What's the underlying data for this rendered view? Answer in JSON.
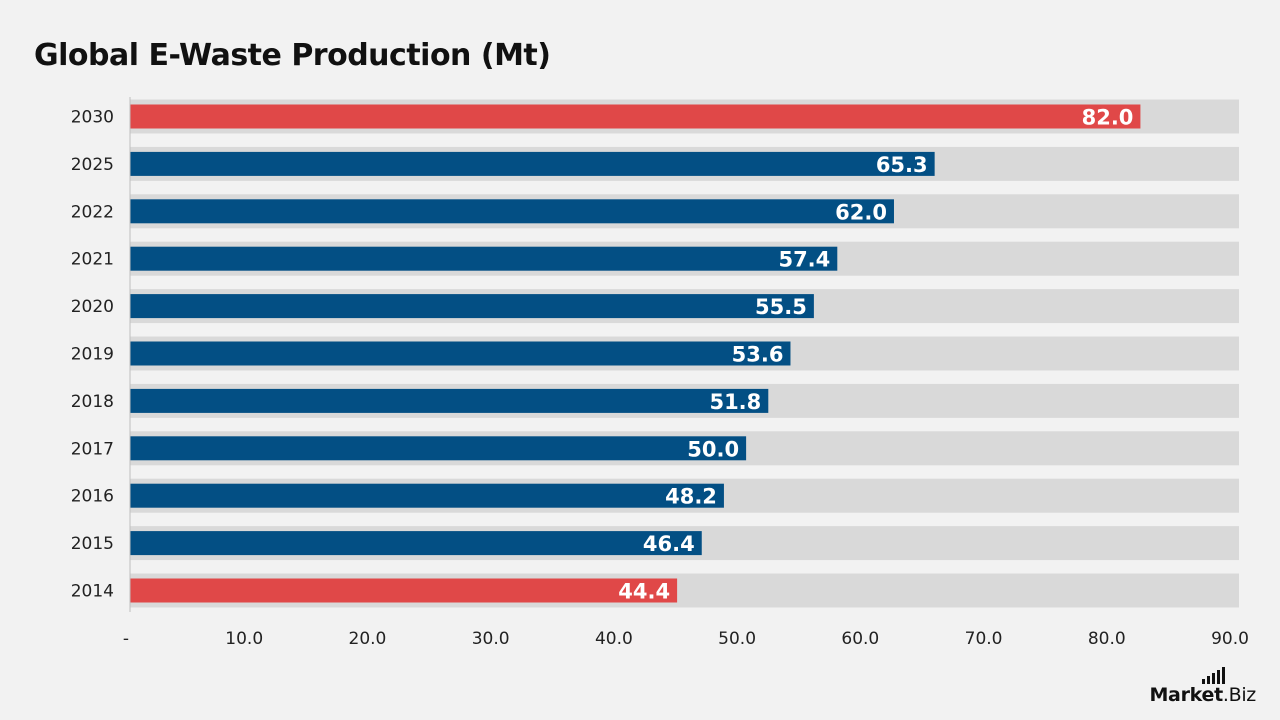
{
  "chart_data": {
    "type": "bar",
    "orientation": "horizontal",
    "title": "Global E-Waste Production (Mt)",
    "categories": [
      "2030",
      "2025",
      "2022",
      "2021",
      "2020",
      "2019",
      "2018",
      "2017",
      "2016",
      "2015",
      "2014"
    ],
    "values": [
      82.0,
      65.3,
      62.0,
      57.4,
      55.5,
      53.6,
      51.8,
      50.0,
      48.2,
      46.4,
      44.4
    ],
    "data_labels": [
      "82.0",
      "65.3",
      "62.0",
      "57.4",
      "55.5",
      "53.6",
      "51.8",
      "50.0",
      "48.2",
      "46.4",
      "44.4"
    ],
    "highlighted_categories": [
      "2030",
      "2014"
    ],
    "xlim": [
      0,
      90
    ],
    "x_ticks": [
      "-",
      "10.0",
      "20.0",
      "30.0",
      "40.0",
      "50.0",
      "60.0",
      "70.0",
      "80.0",
      "90.0"
    ],
    "xlabel": "",
    "ylabel": "",
    "grid": false,
    "legend": "none",
    "colors": {
      "bar": "#034f84",
      "highlight": "#e04848",
      "track": "#d9d9d9",
      "background": "#f2f2f2"
    }
  },
  "brand": {
    "logo_name": "Market",
    "logo_suffix": ".Biz"
  }
}
